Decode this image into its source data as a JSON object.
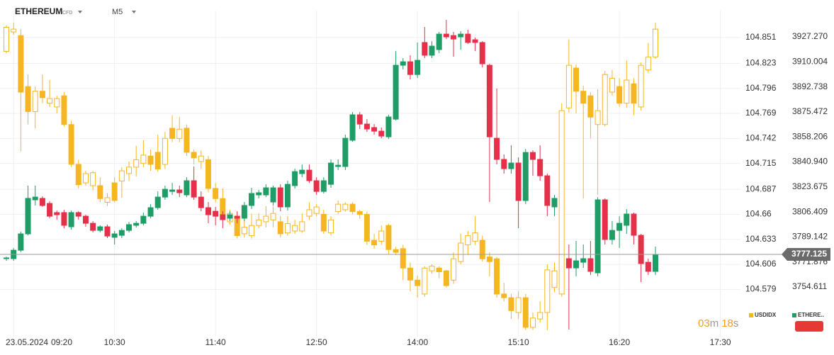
{
  "chart_data": {
    "type": "candlestick",
    "title": "ETHEREUM",
    "subtitle": "CFD",
    "timeframe": "M5",
    "date": "23.05.2024",
    "x": [
      "09:15",
      "09:20",
      "09:25",
      "09:30",
      "09:35",
      "09:40",
      "09:45",
      "09:50",
      "09:55",
      "10:00",
      "10:05",
      "10:10",
      "10:15",
      "10:20",
      "10:25",
      "10:30",
      "10:35",
      "10:40",
      "10:45",
      "10:50",
      "10:55",
      "11:00",
      "11:05",
      "11:10",
      "11:15",
      "11:20",
      "11:25",
      "11:30",
      "11:35",
      "11:40",
      "11:45",
      "11:50",
      "11:55",
      "12:00",
      "12:05",
      "12:10",
      "12:15",
      "12:20",
      "12:25",
      "12:30",
      "12:35",
      "12:40",
      "12:45",
      "12:50",
      "12:55",
      "13:00",
      "13:05",
      "13:10",
      "13:15",
      "13:20",
      "13:25",
      "13:30",
      "13:35",
      "13:40",
      "13:45",
      "13:50",
      "13:55",
      "14:00",
      "14:05",
      "14:10",
      "14:15",
      "14:20",
      "14:25",
      "14:30",
      "14:35",
      "14:40",
      "14:45",
      "14:50",
      "14:55",
      "15:00",
      "15:05",
      "15:10",
      "15:15",
      "15:20",
      "15:25",
      "15:30",
      "15:35",
      "15:40",
      "15:45",
      "15:50",
      "15:55",
      "16:00",
      "16:05",
      "16:10",
      "16:15",
      "16:20",
      "16:25",
      "16:30",
      "16:35",
      "16:40",
      "16:45"
    ],
    "xticks": [
      "09:20",
      "10:30",
      "11:40",
      "12:50",
      "14:00",
      "15:10",
      "16:20",
      "17:30"
    ],
    "ylim": [
      104.528,
      104.88
    ],
    "yticks": [
      104.851,
      104.823,
      104.796,
      104.769,
      104.742,
      104.715,
      104.687,
      104.66,
      104.633,
      104.606,
      104.579
    ],
    "y2lim": [
      3720.4,
      3945.4
    ],
    "y2ticks": [
      {
        "value": 3927.27,
        "label": "3927.270"
      },
      3910.004,
      3892.738,
      3875.472,
      3858.206,
      {
        "value": 3840.94,
        "label": "3840.940"
      },
      3823.675,
      3806.409,
      3789.142,
      3771.876,
      3754.611
    ],
    "grid": true,
    "last_price": 3777.125,
    "timer": {
      "minutes": "03",
      "minutes_unit": "m",
      "seconds": "18",
      "seconds_unit": "s"
    },
    "series": [
      {
        "name": "USDIDX",
        "color": "#f5b622",
        "up_fill": "#ffffff",
        "open": [
          104.836,
          104.857,
          104.853,
          104.798,
          104.771,
          104.793,
          104.78,
          104.776,
          104.788,
          104.757,
          104.714,
          104.694,
          104.691,
          104.691,
          104.673,
          104.694,
          104.696,
          104.704,
          104.711,
          104.715,
          104.723,
          104.727,
          104.714,
          104.753,
          104.742,
          104.753,
          104.727,
          104.717,
          104.719,
          104.688,
          104.677,
          104.652,
          104.658,
          104.639,
          104.637,
          104.648,
          104.652,
          104.654,
          104.652,
          104.64,
          104.642,
          104.642,
          104.658,
          104.661,
          104.66,
          104.64,
          104.663,
          104.665,
          104.671,
          104.663,
          104.66,
          104.632,
          104.631,
          104.648,
          104.622,
          104.623,
          104.602,
          104.589,
          104.574,
          104.599,
          104.602,
          104.599,
          104.589,
          104.609,
          104.627,
          104.631,
          104.632,
          104.614,
          104.612,
          104.574,
          104.57,
          104.554,
          104.57,
          104.538,
          104.547,
          104.554,
          104.581,
          104.574,
          104.775,
          104.818,
          104.793,
          104.788,
          104.757,
          104.757,
          104.792,
          104.798,
          104.78,
          104.801,
          104.776,
          104.816,
          104.83
        ],
        "high": [
          104.864,
          104.867,
          104.86,
          104.811,
          104.798,
          104.811,
          104.805,
          104.788,
          104.792,
          104.761,
          104.719,
          104.707,
          104.707,
          104.7,
          104.683,
          104.7,
          104.711,
          104.717,
          104.734,
          104.74,
          104.73,
          104.746,
          104.749,
          104.767,
          104.765,
          104.757,
          104.73,
          104.729,
          104.723,
          104.694,
          104.688,
          104.665,
          104.663,
          104.654,
          104.661,
          104.661,
          104.669,
          104.669,
          104.658,
          104.658,
          104.654,
          104.661,
          104.673,
          104.671,
          104.665,
          104.658,
          104.675,
          104.673,
          104.673,
          104.665,
          104.663,
          104.639,
          104.648,
          104.65,
          104.625,
          104.627,
          104.608,
          104.594,
          104.604,
          104.606,
          104.604,
          104.6,
          104.619,
          104.639,
          104.642,
          104.658,
          104.637,
          104.619,
          104.614,
          104.586,
          104.574,
          104.577,
          104.574,
          104.554,
          104.566,
          104.606,
          104.608,
          104.78,
          104.849,
          104.822,
          104.799,
          104.792,
          104.795,
          104.815,
          104.816,
          104.807,
          104.826,
          104.807,
          104.824,
          104.845,
          104.867
        ],
        "low": [
          104.834,
          104.854,
          104.728,
          104.757,
          104.753,
          104.78,
          104.776,
          104.769,
          104.755,
          104.711,
          104.688,
          104.691,
          104.686,
          104.673,
          104.669,
          104.673,
          104.678,
          104.696,
          104.701,
          104.711,
          104.707,
          104.706,
          104.709,
          104.738,
          104.738,
          104.723,
          104.714,
          104.709,
          104.684,
          104.673,
          104.655,
          104.649,
          104.634,
          104.635,
          104.634,
          104.645,
          104.646,
          104.646,
          104.635,
          104.637,
          104.639,
          104.64,
          104.654,
          104.658,
          104.639,
          104.637,
          104.66,
          104.663,
          104.66,
          104.655,
          104.627,
          104.623,
          104.627,
          104.617,
          104.616,
          104.589,
          104.577,
          104.57,
          104.571,
          104.596,
          104.591,
          104.581,
          104.585,
          104.606,
          104.616,
          104.627,
          104.609,
          104.593,
          104.57,
          104.566,
          104.547,
          104.547,
          104.535,
          104.535,
          104.543,
          104.535,
          104.576,
          104.571,
          104.77,
          104.769,
          104.677,
          104.742,
          104.681,
          104.755,
          104.788,
          104.776,
          104.775,
          104.767,
          104.772,
          104.813,
          104.828
        ],
        "close": [
          104.862,
          104.86,
          104.792,
          104.771,
          104.793,
          104.786,
          104.785,
          104.785,
          104.757,
          104.714,
          104.692,
          104.704,
          104.705,
          104.677,
          104.678,
          104.675,
          104.707,
          104.711,
          104.719,
          104.724,
          104.714,
          104.709,
          104.742,
          104.742,
          104.752,
          104.727,
          104.721,
          104.723,
          104.688,
          104.677,
          104.66,
          104.661,
          104.637,
          104.646,
          104.648,
          104.654,
          104.658,
          104.661,
          104.639,
          104.65,
          104.648,
          104.652,
          104.665,
          104.668,
          104.642,
          104.654,
          104.671,
          104.671,
          104.663,
          104.66,
          104.631,
          104.627,
          104.642,
          104.622,
          104.619,
          104.602,
          104.589,
          104.583,
          104.602,
          104.604,
          104.598,
          104.583,
          104.612,
          104.629,
          104.637,
          104.64,
          104.612,
          104.609,
          104.574,
          104.57,
          104.556,
          104.57,
          104.538,
          104.548,
          104.554,
          104.6,
          104.599,
          104.772,
          104.821,
          104.793,
          104.78,
          104.765,
          104.772,
          104.811,
          104.807,
          104.78,
          104.805,
          104.78,
          104.821,
          104.83,
          104.86
        ]
      },
      {
        "name": "ETHERE..",
        "axis": "y2",
        "up_color": "#1f9d66",
        "down_color": "#e5304a",
        "open": [
          3774.2,
          3774.2,
          3780.0,
          3791.3,
          3814.8,
          3815.8,
          3812.3,
          3806.0,
          3806.0,
          3796.2,
          3806.0,
          3803.5,
          3798.6,
          3793.7,
          3796.2,
          3788.9,
          3790.3,
          3793.7,
          3797.2,
          3798.6,
          3803.5,
          3809.4,
          3816.7,
          3820.6,
          3821.6,
          3818.2,
          3828.0,
          3816.7,
          3809.4,
          3806.9,
          3804.5,
          3802.1,
          3803.5,
          3802.1,
          3810.9,
          3818.2,
          3818.2,
          3813.3,
          3823.1,
          3809.9,
          3824.6,
          3832.9,
          3835.3,
          3828.0,
          3820.6,
          3825.5,
          3837.8,
          3837.8,
          3855.9,
          3873.5,
          3867.1,
          3864.7,
          3862.2,
          3858.3,
          3870.5,
          3907.7,
          3910.1,
          3901.3,
          3923.4,
          3914.6,
          3918.5,
          3929.2,
          3928.2,
          3927.3,
          3929.2,
          3925.3,
          3923.4,
          3907.7,
          3857.3,
          3842.7,
          3836.3,
          3840.2,
          3814.3,
          3847.5,
          3842.7,
          3831.4,
          3809.9,
          null,
          3774.2,
          3767.8,
          3771.7,
          3774.2,
          3764.4,
          3814.8,
          3787.4,
          3793.7,
          3797.2,
          3805.0,
          3790.3,
          3771.7,
          3765.4
        ],
        "high": [
          3775.6,
          3781.5,
          3792.8,
          3824.6,
          3824.6,
          3817.2,
          3813.8,
          3807.4,
          3807.9,
          3807.4,
          3806.9,
          3804.5,
          3800.1,
          3797.2,
          3797.7,
          3793.3,
          3795.2,
          3799.6,
          3800.1,
          3806.0,
          3811.8,
          3820.6,
          3824.6,
          3826.5,
          3824.6,
          3830.4,
          3837.8,
          3820.6,
          3813.3,
          3809.9,
          3806.9,
          3806.9,
          3806.9,
          3813.3,
          3823.1,
          3821.6,
          3825.5,
          3824.6,
          3825.5,
          3828.0,
          3836.3,
          3839.2,
          3839.2,
          3830.4,
          3830.4,
          3842.7,
          3842.7,
          3859.8,
          3875.4,
          3875.4,
          3870.5,
          3867.1,
          3864.7,
          3873.5,
          3917.5,
          3912.6,
          3914.6,
          3923.4,
          3934.1,
          3924.3,
          3930.7,
          3939.0,
          3930.7,
          3931.2,
          3932.2,
          3926.8,
          3924.3,
          3908.7,
          3891.6,
          3846.1,
          3852.4,
          3844.1,
          3850.0,
          3849.0,
          3852.4,
          3832.9,
          3818.2,
          null,
          3784.0,
          3786.4,
          3784.0,
          3786.4,
          3816.7,
          3815.8,
          3800.1,
          3803.5,
          3808.4,
          3806.0,
          3791.3,
          3774.2,
          3782.5
        ],
        "low": [
          3772.7,
          3772.7,
          3778.6,
          3790.3,
          3810.9,
          3809.9,
          3802.1,
          3801.1,
          3795.2,
          3794.2,
          3801.1,
          3796.2,
          3792.3,
          3792.3,
          3788.4,
          3784.0,
          3788.4,
          3792.3,
          3795.7,
          3797.2,
          3802.1,
          3807.9,
          3814.8,
          3818.2,
          3816.7,
          3816.7,
          3814.8,
          3806.9,
          3798.6,
          3797.2,
          3795.2,
          3800.1,
          3798.6,
          3800.1,
          3808.4,
          3815.8,
          3816.7,
          3810.9,
          3806.9,
          3807.4,
          3822.6,
          3830.4,
          3826.5,
          3818.2,
          3819.2,
          3823.1,
          3835.3,
          3835.3,
          3854.9,
          3863.7,
          3861.7,
          3859.8,
          3857.3,
          3856.8,
          3869.6,
          3904.8,
          3897.9,
          3898.9,
          3912.6,
          3912.6,
          3916.0,
          3925.8,
          3913.6,
          3918.5,
          3922.4,
          3917.5,
          3906.2,
          3813.3,
          3839.2,
          3832.9,
          3832.9,
          3795.2,
          3811.8,
          3831.4,
          3828.0,
          3803.5,
          3803.5,
          null,
          3725.3,
          3762.0,
          3767.8,
          3762.9,
          3762.0,
          3784.0,
          3784.0,
          3781.5,
          3791.3,
          3784.0,
          3758.0,
          3762.9,
          3762.9
        ],
        "close": [
          3774.7,
          3780.0,
          3791.3,
          3815.8,
          3816.7,
          3810.9,
          3803.5,
          3804.5,
          3797.2,
          3806.0,
          3803.5,
          3798.6,
          3793.7,
          3796.2,
          3789.8,
          3791.3,
          3793.7,
          3797.7,
          3798.6,
          3803.5,
          3809.4,
          3816.7,
          3822.1,
          3821.6,
          3819.7,
          3828.0,
          3816.7,
          3809.4,
          3804.5,
          3803.5,
          3801.1,
          3804.5,
          3802.1,
          3810.9,
          3819.2,
          3819.7,
          3823.1,
          3823.1,
          3809.9,
          3825.5,
          3834.3,
          3835.3,
          3828.0,
          3820.6,
          3828.0,
          3840.2,
          3838.7,
          3857.3,
          3873.5,
          3867.1,
          3863.7,
          3862.2,
          3858.8,
          3872.0,
          3907.7,
          3910.1,
          3901.3,
          3911.1,
          3914.6,
          3920.9,
          3929.2,
          3927.3,
          3925.8,
          3929.2,
          3923.4,
          3923.4,
          3908.7,
          3858.3,
          3842.7,
          3836.3,
          3840.2,
          3814.3,
          3847.5,
          3842.7,
          3831.4,
          3810.9,
          3815.8,
          null,
          3767.8,
          3772.7,
          3774.2,
          3765.4,
          3814.8,
          3787.4,
          3793.7,
          3798.6,
          3805.0,
          3790.3,
          3770.8,
          3765.4,
          3777.125
        ]
      }
    ]
  }
}
